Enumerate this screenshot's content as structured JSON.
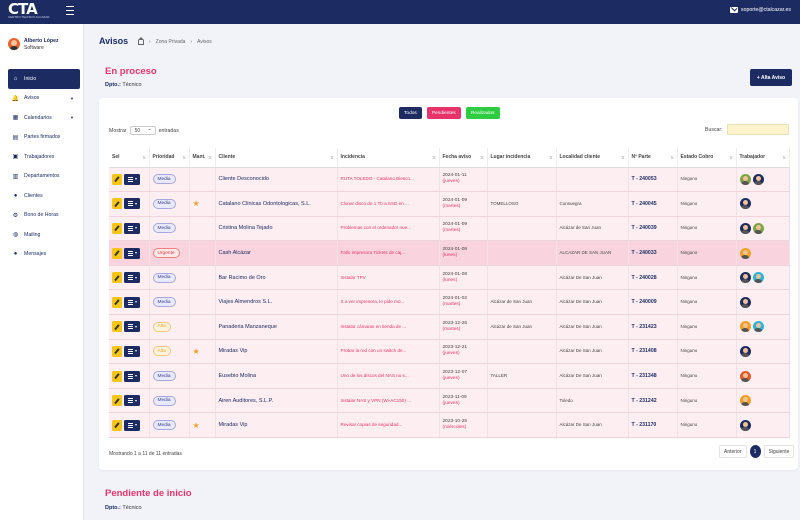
{
  "topbar": {
    "logo_text": "CTA",
    "logo_sub": "CENTRO TECNICO ALCAZAR",
    "email": "soporte@ctalcazar.es"
  },
  "sidebar": {
    "user_name": "Alberto López",
    "user_role": "Software",
    "items": [
      {
        "label": "Inicio",
        "icon": "home-icon",
        "active": true
      },
      {
        "label": "Avisos",
        "icon": "bell-icon",
        "caret": true
      },
      {
        "label": "Calendarios",
        "icon": "calendar-icon",
        "caret": true
      },
      {
        "label": "Partes firmados",
        "icon": "document-icon"
      },
      {
        "label": "Trabajadores",
        "icon": "id-card-icon"
      },
      {
        "label": "Departamentos",
        "icon": "building-icon"
      },
      {
        "label": "Clientes",
        "icon": "users-icon"
      },
      {
        "label": "Bono de Horas",
        "icon": "gear-icon"
      },
      {
        "label": "Mailing",
        "icon": "globe-icon"
      },
      {
        "label": "Mensajes",
        "icon": "chat-icon"
      }
    ]
  },
  "header": {
    "title": "Avisos",
    "breadcrumb": [
      "Zona Privada",
      "Avisos"
    ]
  },
  "section1": {
    "title": "En proceso",
    "dept_label": "Dpto.:",
    "dept_value": "Técnico",
    "alta_button": "+ Alta Aviso"
  },
  "filters": [
    {
      "label": "Todos",
      "color": "#1c2c63"
    },
    {
      "label": "Pendientes",
      "color": "#e8336a"
    },
    {
      "label": "Realizados",
      "color": "#2ecc40"
    }
  ],
  "table_controls": {
    "show_label": "Mostrar",
    "show_value": "50",
    "entries_label": "entradas",
    "search_label": "Buscar:"
  },
  "columns": [
    "Sel",
    "Prioridad",
    "Mant.",
    "Cliente",
    "Incidencia",
    "Fecha aviso",
    "Lugar incidencia",
    "Localidad cliente",
    "Nº Parte",
    "Estado Cobro",
    "Trabajador"
  ],
  "rows": [
    {
      "prio": "Media",
      "star": false,
      "client": "Cliente Desconocido",
      "incid": "RUTA TOLEDO - Catalano Biesco...",
      "date": "2024-01-11",
      "day": "(jueves)",
      "lugar": "",
      "loc": "",
      "parte": "T - 240053",
      "cobro": "Ninguno",
      "workers": [
        "wk-green",
        "wk-dark"
      ],
      "hl": false
    },
    {
      "prio": "Media",
      "star": true,
      "client": "Catalano Clinicas Odontologicas, S.L.",
      "incid": "Clonar disco de 1 Tb a SSD en ...",
      "date": "2024-01-09",
      "day": "(martes)",
      "lugar": "TOMELLOSO",
      "loc": "Consuegra",
      "parte": "T - 240045",
      "cobro": "Ninguno",
      "workers": [
        "wk-dark"
      ],
      "hl": false
    },
    {
      "prio": "Media",
      "star": false,
      "client": "Cristina Molina Tejado",
      "incid": "Problemas con el ordenador nue...",
      "date": "2024-01-09",
      "day": "(martes)",
      "lugar": "",
      "loc": "Alcázar de San Juan",
      "parte": "T - 240039",
      "cobro": "Ninguno",
      "workers": [
        "wk-dark",
        "wk-green"
      ],
      "hl": false
    },
    {
      "prio": "Urgente",
      "star": false,
      "client": "Cash Alcázar",
      "incid": "Fallo impresora Tickets de caj...",
      "date": "2024-01-08",
      "day": "(lunes)",
      "lugar": "",
      "loc": "ALCAZAR DE SAN JUAN",
      "parte": "T - 240033",
      "cobro": "Ninguno",
      "workers": [
        "wk-orange"
      ],
      "hl": true
    },
    {
      "prio": "Media",
      "star": false,
      "client": "Bar Racimo de Oro",
      "incid": "Instalar TPV",
      "date": "2024-01-08",
      "day": "(lunes)",
      "lugar": "",
      "loc": "Alcázar De San Juan",
      "parte": "T - 240028",
      "cobro": "Ninguno",
      "workers": [
        "wk-dark",
        "wk-cyan"
      ],
      "hl": false
    },
    {
      "prio": "Media",
      "star": false,
      "client": "Viajes Almendros S.L.",
      "incid": "X a ver impresora, le pide mo...",
      "date": "2024-01-02",
      "day": "(martes)",
      "lugar": "Alcázar de San Juan",
      "loc": "Alcázar De San Juan",
      "parte": "T - 240009",
      "cobro": "Ninguno",
      "workers": [
        "wk-dark"
      ],
      "hl": false
    },
    {
      "prio": "Alta",
      "star": false,
      "client": "Panaderia Manzaneque",
      "incid": "Instalar cámaras en tienda de ...",
      "date": "2023-12-26",
      "day": "(martes)",
      "lugar": "Alcázar de San Juan",
      "loc": "Alcázar De San Juan",
      "parte": "T - 231423",
      "cobro": "Ninguno",
      "workers": [
        "wk-orange",
        "wk-cyan"
      ],
      "hl": false
    },
    {
      "prio": "Alta",
      "star": true,
      "client": "Miradas Vip",
      "incid": "Probar la red con un switch de...",
      "date": "2023-12-21",
      "day": "(jueves)",
      "lugar": "",
      "loc": "Alcázar De San Juan",
      "parte": "T - 231408",
      "cobro": "Ninguno",
      "workers": [
        "wk-dark"
      ],
      "hl": false
    },
    {
      "prio": "Media",
      "star": false,
      "client": "Eusebio Molina",
      "incid": "Uno de los discos del NAS no s...",
      "date": "2023-12-07",
      "day": "(jueves)",
      "lugar": "TALLER",
      "loc": "Alcázar De San Juan",
      "parte": "T - 231348",
      "cobro": "Ninguno",
      "workers": [
        "wk-red"
      ],
      "hl": false
    },
    {
      "prio": "Media",
      "star": false,
      "client": "Airen Auditores, S.L.P.",
      "incid": "Instalar NAS y VPN (Wi-AC150) ...",
      "date": "2023-11-09",
      "day": "(jueves)",
      "lugar": "",
      "loc": "Toledo",
      "parte": "T - 231242",
      "cobro": "Ninguno",
      "workers": [
        "wk-orange"
      ],
      "hl": false
    },
    {
      "prio": "Media",
      "star": true,
      "client": "Miradas Vip",
      "incid": "Revisar copias de seguridad...",
      "date": "2023-10-25",
      "day": "(miércoles)",
      "lugar": "",
      "loc": "Alcázar De San Juan",
      "parte": "T - 231170",
      "cobro": "Ninguno",
      "workers": [
        "wk-dark"
      ],
      "hl": false
    }
  ],
  "footer": {
    "info": "Mostrando 1 a 11 de 11 entradas",
    "prev": "Anterior",
    "page": "1",
    "next": "Siguiente"
  },
  "section2": {
    "title": "Pendiente de inicio",
    "dept_label": "Dpto.:",
    "dept_value": "Técnico"
  }
}
